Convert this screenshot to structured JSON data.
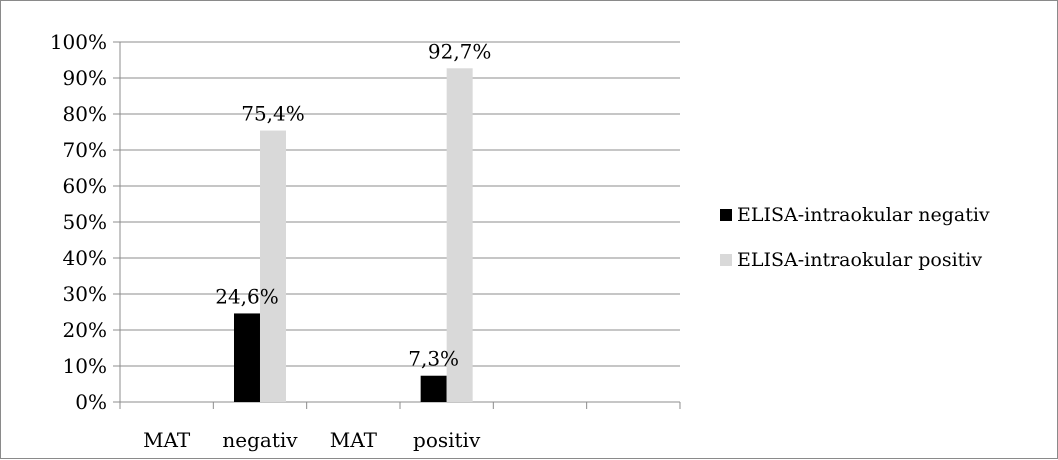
{
  "chart_data": {
    "type": "bar",
    "categories": [
      "MAT negativ",
      "MAT positiv"
    ],
    "category_label_parts": [
      [
        "MAT",
        "negativ"
      ],
      [
        "MAT",
        "positiv"
      ]
    ],
    "series": [
      {
        "name": "ELISA-intraokular negativ",
        "values": [
          24.6,
          7.3
        ],
        "labels": [
          "24,6%",
          "7,3%"
        ],
        "color": "#000000"
      },
      {
        "name": "ELISA-intraokular positiv",
        "values": [
          75.4,
          92.7
        ],
        "labels": [
          "75,4%",
          "92,7%"
        ],
        "color": "#d9d9d9"
      }
    ],
    "yticks": [
      "0%",
      "10%",
      "20%",
      "30%",
      "40%",
      "50%",
      "60%",
      "70%",
      "80%",
      "90%",
      "100%"
    ],
    "ylim": [
      0,
      100
    ],
    "grid": true,
    "legend_position": "right",
    "title": "",
    "xlabel": "",
    "ylabel": ""
  }
}
